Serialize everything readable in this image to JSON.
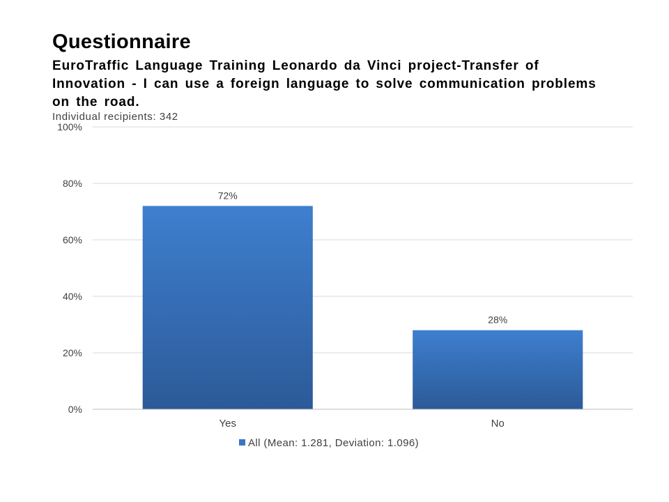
{
  "chart_data": {
    "type": "bar",
    "title": "Questionnaire",
    "subtitle": "EuroTraffic Language Training  Leonardo da Vinci project-Transfer of Innovation - I can use a foreign language to solve communication problems on the road.",
    "note": "Individual recipients: 342",
    "categories": [
      "Yes",
      "No"
    ],
    "series": [
      {
        "name": "All (Mean: 1.281, Deviation: 1.096)",
        "values": [
          72,
          28
        ],
        "labels": [
          "72%",
          "28%"
        ]
      }
    ],
    "yticks": [
      "0%",
      "20%",
      "40%",
      "60%",
      "80%",
      "100%"
    ],
    "ylim": [
      0,
      100
    ],
    "grid": true,
    "legend": "bottom",
    "colors": {
      "bar_top": "#3e7fcf",
      "bar_bottom": "#2c5a98",
      "legend_swatch": "#3a75c4",
      "grid": "#d9d9d9",
      "axis": "#bfbfbf"
    }
  }
}
